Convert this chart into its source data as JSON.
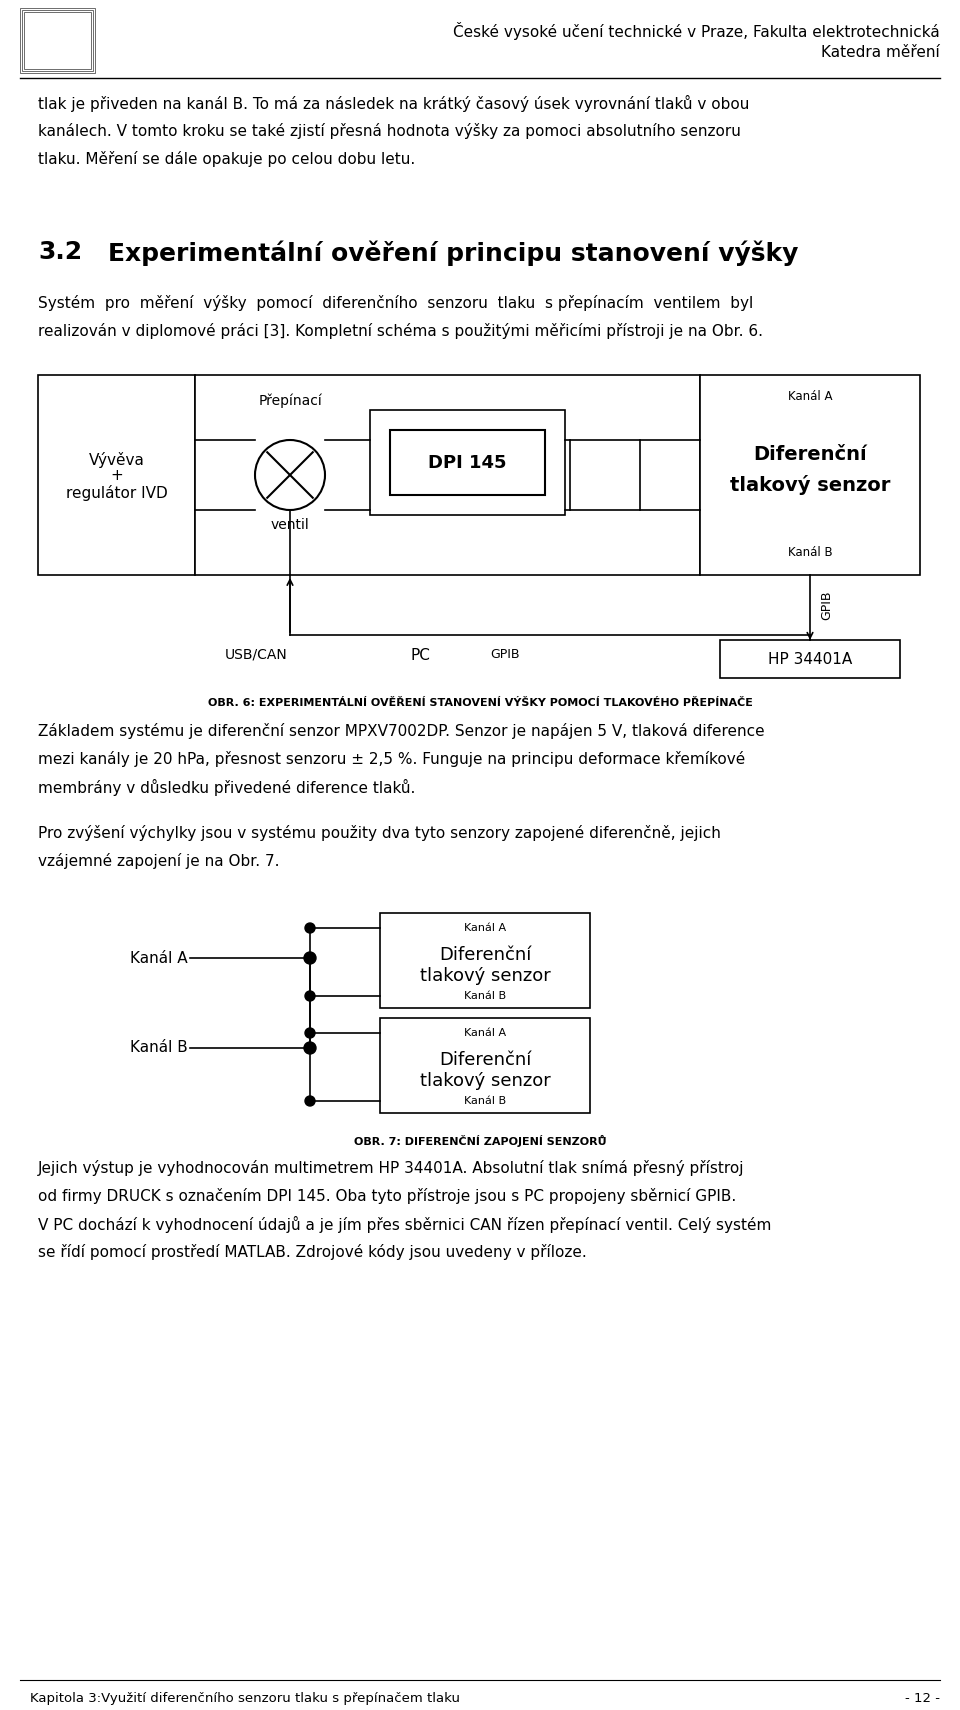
{
  "header_title": "České vysoké učení technické v Praze, Fakulta elektrotechnická",
  "header_subtitle": "Katedra měření",
  "footer_left": "Kapitola 3:Využití diferenčního senzoru tlaku s přepínačem tlaku",
  "footer_right": "- 12 -",
  "body_text": [
    "tlak je přiveden na kanál B. To má za následek na krátký časový úsek vyrovnání tlaků v obou",
    "kanálech. V tomto kroku se také zjistí přesná hodnota výšky za pomoci absolutního senzoru",
    "tlaku. Měření se dále opakuje po celou dobu letu."
  ],
  "section_number": "3.2",
  "section_heading": "Experimentální ověření principu stanovení výšky",
  "section_body_line1": "Systém  pro  měření  výšky  pomocí  diferenčního  senzoru  tlaku  s přepínacím  ventilem  byl",
  "section_body_line2": "realizován v diplomové práci [3]. Kompletní schéma s použitými měřicími přístroji je na Obr. 6.",
  "diagram1_caption": "OBR. 6: EXPERIMENTÁLNÍ OVĚŘENÍ STANOVENÍ VÝŠKY POMOCÍ TLAKOVÉHO PŘEPÍNAČE",
  "diagram2_caption": "OBR. 7: DIFERENČNÍ ZAPOJENÍ SENZORŮ",
  "text_after_diagram1": [
    "Základem systému je diferenční senzor MPXV7002DP. Senzor je napájen 5 V, tlaková diference",
    "mezi kanály je 20 hPa, přesnost senzoru ± 2,5 %. Funguje na principu deformace křemíkové",
    "membrány v důsledku přivedené diference tlaků."
  ],
  "text_para2_line1": "Pro zvýšení výchylky jsou v systému použity dva tyto senzory zapojené diferenčně, jejich",
  "text_para2_line2": "vzájemné zapojení je na Obr. 7.",
  "text_after_diagram2": [
    "Jejich výstup je vyhodnocován multimetrem HP 34401A. Absolutní tlak snímá přesný přístroj",
    "od firmy DRUCK s označením DPI 145. Oba tyto přístroje jsou s PC propojeny sběrnicí GPIB.",
    "V PC dochází k vyhodnocení údajů a je jím přes sběrnici CAN řízen přepínací ventil. Celý systém",
    "se řídí pomocí prostředí MATLAB. Zdrojové kódy jsou uvedeny v příloze."
  ],
  "bg_color": "#ffffff",
  "text_color": "#000000"
}
